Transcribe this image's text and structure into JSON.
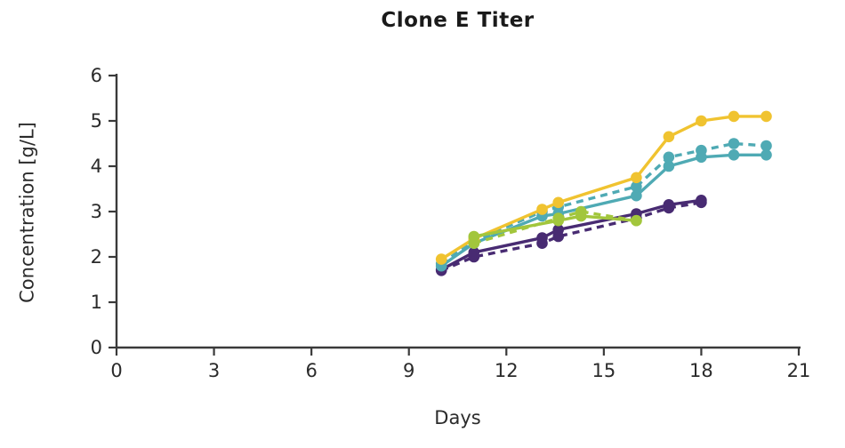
{
  "title": "Clone E Titer",
  "chart_data": {
    "type": "line",
    "title": "Clone E Titer",
    "xlabel": "Days",
    "ylabel": "Concentration [g/L]",
    "xlim": [
      0,
      21
    ],
    "ylim": [
      0,
      6
    ],
    "xticks": [
      0,
      3,
      6,
      9,
      12,
      15,
      18,
      21
    ],
    "yticks": [
      0,
      1,
      2,
      3,
      4,
      5,
      6
    ],
    "grid": false,
    "legend_position": "none",
    "background_color": "#ffffff",
    "axis_color": "#3a3a3a",
    "text_color": "#2b2b2b",
    "series": [
      {
        "name": "purple-dashed",
        "color": "#482B72",
        "line_style": "dashed",
        "marker": "circle",
        "points": [
          [
            10,
            1.7
          ],
          [
            11,
            2.0
          ],
          [
            13.1,
            2.3
          ],
          [
            13.6,
            2.45
          ],
          [
            16,
            2.85
          ],
          [
            17,
            3.08
          ],
          [
            18,
            3.2
          ]
        ]
      },
      {
        "name": "purple-solid",
        "color": "#482B72",
        "line_style": "solid",
        "marker": "circle",
        "points": [
          [
            10,
            1.72
          ],
          [
            11,
            2.1
          ],
          [
            13.1,
            2.42
          ],
          [
            13.6,
            2.6
          ],
          [
            16,
            2.95
          ],
          [
            17,
            3.15
          ],
          [
            18,
            3.25
          ]
        ]
      },
      {
        "name": "teal-solid",
        "color": "#4FAAB4",
        "line_style": "solid",
        "marker": "circle",
        "points": [
          [
            10,
            1.8
          ],
          [
            11,
            2.3
          ],
          [
            13.1,
            2.9
          ],
          [
            13.6,
            2.95
          ],
          [
            16,
            3.35
          ],
          [
            17,
            4.0
          ],
          [
            18,
            4.2
          ],
          [
            19,
            4.25
          ],
          [
            20,
            4.25
          ]
        ]
      },
      {
        "name": "teal-dashed",
        "color": "#4FAAB4",
        "line_style": "dashed",
        "marker": "circle",
        "points": [
          [
            10,
            1.85
          ],
          [
            11,
            2.35
          ],
          [
            13.1,
            3.0
          ],
          [
            13.6,
            3.1
          ],
          [
            16,
            3.55
          ],
          [
            17,
            4.2
          ],
          [
            18,
            4.35
          ],
          [
            19,
            4.5
          ],
          [
            20,
            4.45
          ]
        ]
      },
      {
        "name": "yellow-solid",
        "color": "#F0C330",
        "line_style": "solid",
        "marker": "circle",
        "points": [
          [
            10,
            1.95
          ],
          [
            11,
            2.4
          ],
          [
            13.1,
            3.05
          ],
          [
            13.6,
            3.2
          ],
          [
            16,
            3.75
          ],
          [
            17,
            4.65
          ],
          [
            18,
            5.0
          ],
          [
            19,
            5.1
          ],
          [
            20,
            5.1
          ]
        ]
      },
      {
        "name": "green-dashed",
        "color": "#A2C63C",
        "line_style": "dashed",
        "marker": "circle",
        "points": [
          [
            11,
            2.3
          ],
          [
            13.6,
            2.85
          ],
          [
            14.3,
            3.0
          ],
          [
            16,
            2.8
          ]
        ]
      },
      {
        "name": "green-solid",
        "color": "#A2C63C",
        "line_style": "solid",
        "marker": "circle",
        "points": [
          [
            11,
            2.45
          ],
          [
            13.6,
            2.8
          ],
          [
            14.3,
            2.9
          ],
          [
            16,
            2.8
          ]
        ]
      }
    ]
  }
}
